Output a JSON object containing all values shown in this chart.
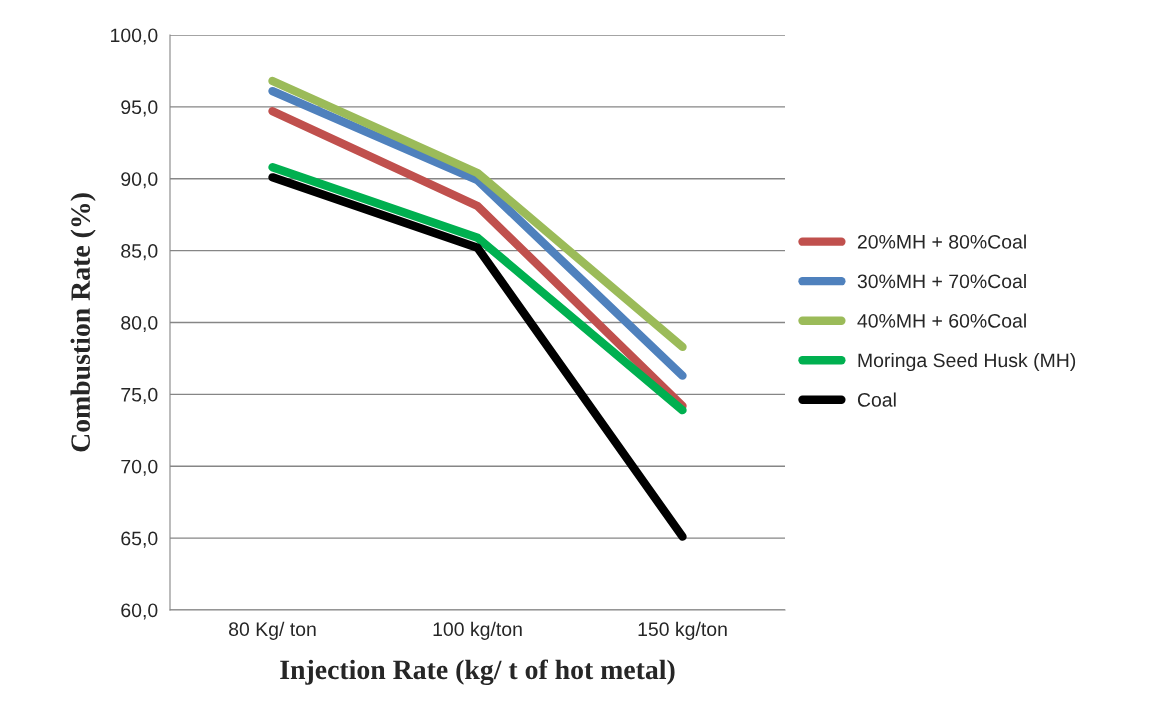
{
  "chart_data": {
    "type": "line",
    "xlabel": "Injection Rate (kg/ t of hot metal)",
    "ylabel": "Combustion Rate (%)",
    "categories": [
      "80 Kg/ ton",
      "100 kg/ton",
      "150 kg/ton"
    ],
    "series": [
      {
        "name": "20%MH + 80%Coal",
        "color": "#c0504d",
        "values": [
          94.7,
          88.1,
          74.2
        ]
      },
      {
        "name": "30%MH + 70%Coal",
        "color": "#4f81bd",
        "values": [
          96.1,
          89.9,
          76.3
        ]
      },
      {
        "name": "40%MH + 60%Coal",
        "color": "#9bbb59",
        "values": [
          96.8,
          90.4,
          78.3
        ]
      },
      {
        "name": "Moringa Seed Husk (MH)",
        "color": "#00b050",
        "values": [
          90.8,
          85.9,
          73.9
        ]
      },
      {
        "name": "Coal",
        "color": "#000000",
        "values": [
          90.1,
          85.2,
          65.1
        ]
      }
    ],
    "ylim": [
      60,
      100
    ],
    "yticks": [
      {
        "value": 60,
        "label": "60,0"
      },
      {
        "value": 65,
        "label": "65,0"
      },
      {
        "value": 70,
        "label": "70,0"
      },
      {
        "value": 75,
        "label": "75,0"
      },
      {
        "value": 80,
        "label": "80,0"
      },
      {
        "value": 85,
        "label": "85,0"
      },
      {
        "value": 90,
        "label": "90,0"
      },
      {
        "value": 95,
        "label": "95,0"
      },
      {
        "value": 100,
        "label": "100,0"
      }
    ],
    "grid": "y",
    "legend": "right",
    "marker": "none",
    "line_style": "solid"
  }
}
